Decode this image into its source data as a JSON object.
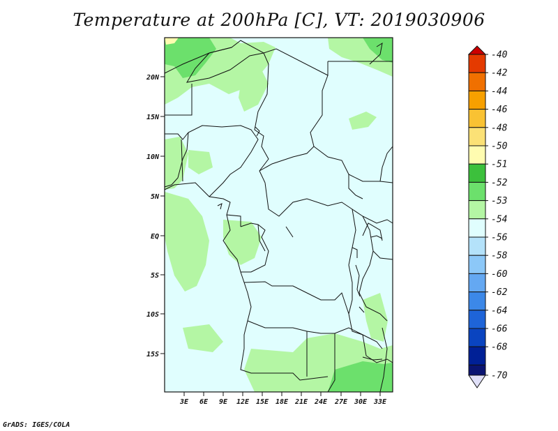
{
  "title": "Temperature at 200hPa [C], VT: 2019030906",
  "footer": "GrADS: IGES/COLA",
  "map": {
    "lat_labels": [
      "20N",
      "15N",
      "10N",
      "5N",
      "EQ",
      "5S",
      "10S",
      "15S"
    ],
    "lon_labels": [
      "3E",
      "6E",
      "9E",
      "12E",
      "15E",
      "18E",
      "21E",
      "24E",
      "27E",
      "30E",
      "33E"
    ]
  },
  "colorbar": {
    "levels": [
      {
        "label": "-40",
        "color": "#cc0000"
      },
      {
        "label": "-42",
        "color": "#e43a00"
      },
      {
        "label": "-44",
        "color": "#f07000"
      },
      {
        "label": "-46",
        "color": "#f7a000"
      },
      {
        "label": "-48",
        "color": "#f9c233"
      },
      {
        "label": "-50",
        "color": "#fbe176"
      },
      {
        "label": "-51",
        "color": "#fffcb0"
      },
      {
        "label": "-52",
        "color": "#3cc03c"
      },
      {
        "label": "-53",
        "color": "#6ce06c"
      },
      {
        "label": "-54",
        "color": "#b4f6a4"
      },
      {
        "label": "-56",
        "color": "#e0fefe"
      },
      {
        "label": "-58",
        "color": "#b4e2fa"
      },
      {
        "label": "-60",
        "color": "#8cc8f8"
      },
      {
        "label": "-62",
        "color": "#64a8f2"
      },
      {
        "label": "-64",
        "color": "#3c88e8"
      },
      {
        "label": "-66",
        "color": "#1e64d8"
      },
      {
        "label": "-68",
        "color": "#0a44c0"
      },
      {
        "label": "-70",
        "color": "#002096"
      }
    ],
    "bottom_color": "#0a1472",
    "under_color": "#e0e0f8"
  },
  "colors": {
    "background_field": "#e0fefe",
    "light_green": "#b4f6a4",
    "mid_green": "#6ce06c",
    "pale_yellow": "#fffcb0"
  }
}
